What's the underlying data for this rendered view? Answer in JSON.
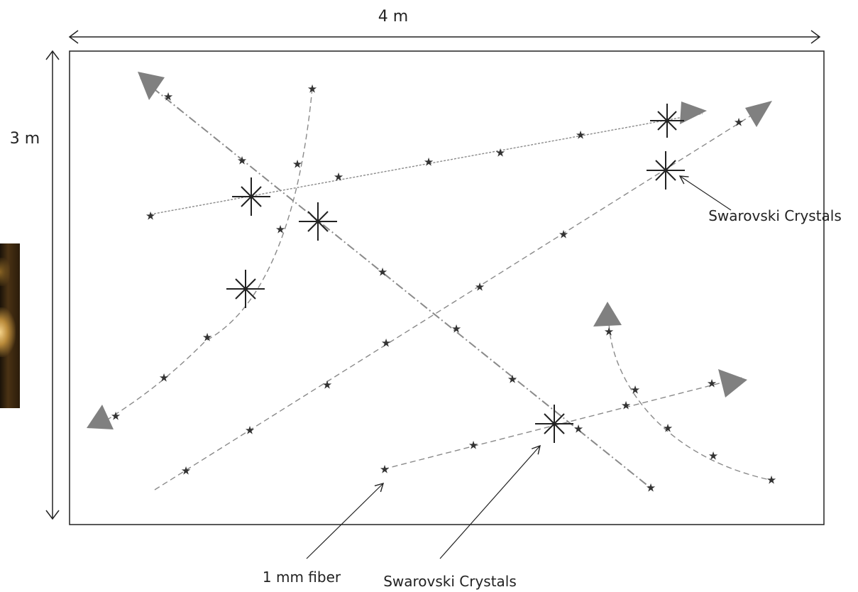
{
  "dimensions": {
    "width": "4 m",
    "height": "3 m"
  },
  "labels": {
    "fiber": "1 mm fiber",
    "crystals_bottom": "Swarovski Crystals",
    "crystals_right": "Swarovski Crystals"
  },
  "colors": {
    "fiber_line": "#8a8a8a",
    "arrowhead": "#808080",
    "outline": "#222222",
    "star_marker": "#333333"
  }
}
